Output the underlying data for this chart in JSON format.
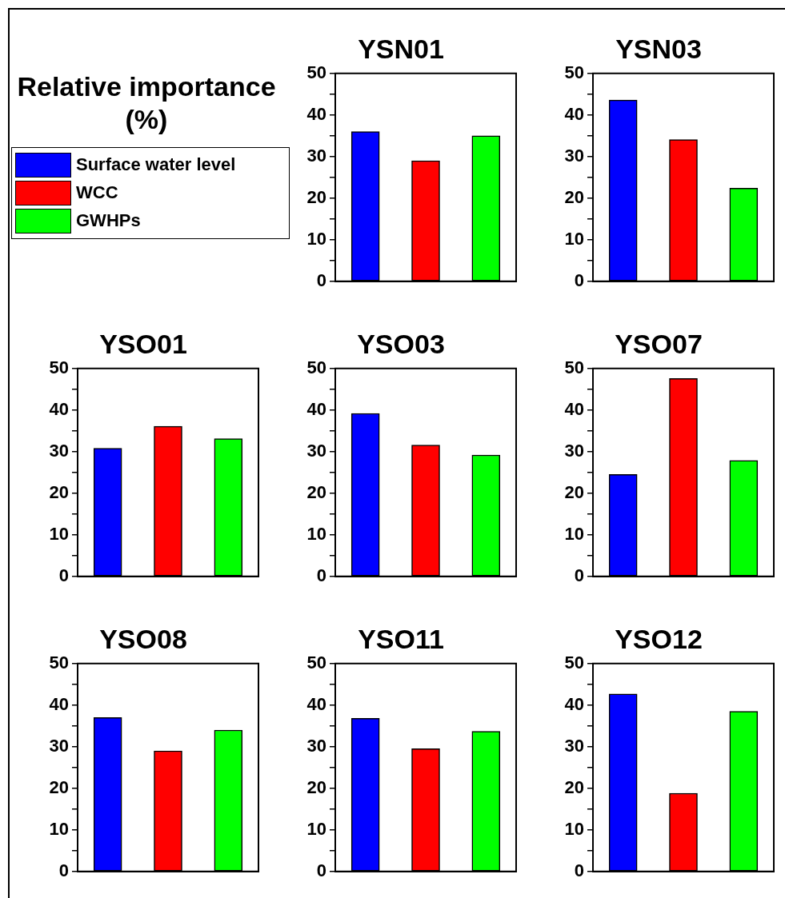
{
  "chart_data": [
    {
      "type": "other",
      "title": "Relative importance (%)",
      "legend": "bottom",
      "series": [
        {
          "name": "Surface water level",
          "color": "#0000ff"
        },
        {
          "name": "WCC",
          "color": "#ff0000"
        },
        {
          "name": "GWHPs",
          "color": "#00ff00"
        }
      ]
    },
    {
      "type": "bar",
      "title": "YSN01",
      "categories": [
        null,
        null,
        null
      ],
      "values": [
        36.0,
        29.0,
        35.0
      ],
      "colors": [
        "#0000ff",
        "#ff0000",
        "#00ff00"
      ],
      "ylim": [
        0,
        50
      ],
      "yticks": [
        0,
        {
          "value": 5,
          "label": null
        },
        10,
        {
          "value": 15,
          "label": null
        },
        20,
        {
          "value": 25,
          "label": null
        },
        30,
        {
          "value": 35,
          "label": null
        },
        40,
        {
          "value": 45,
          "label": null
        },
        50
      ],
      "tick_labels": "y"
    },
    {
      "type": "bar",
      "title": "YSN03",
      "categories": [
        null,
        null,
        null
      ],
      "values": [
        43.6,
        34.1,
        22.4
      ],
      "colors": [
        "#0000ff",
        "#ff0000",
        "#00ff00"
      ],
      "ylim": [
        0,
        50
      ],
      "yticks": [
        0,
        {
          "value": 5,
          "label": null
        },
        10,
        {
          "value": 15,
          "label": null
        },
        20,
        {
          "value": 25,
          "label": null
        },
        30,
        {
          "value": 35,
          "label": null
        },
        40,
        {
          "value": 45,
          "label": null
        },
        50
      ],
      "tick_labels": "y"
    },
    {
      "type": "bar",
      "title": "YSO01",
      "categories": [
        null,
        null,
        null
      ],
      "values": [
        30.8,
        36.1,
        33.1
      ],
      "colors": [
        "#0000ff",
        "#ff0000",
        "#00ff00"
      ],
      "ylim": [
        0,
        50
      ],
      "yticks": [
        0,
        {
          "value": 5,
          "label": null
        },
        10,
        {
          "value": 15,
          "label": null
        },
        20,
        {
          "value": 25,
          "label": null
        },
        30,
        {
          "value": 35,
          "label": null
        },
        40,
        {
          "value": 45,
          "label": null
        },
        50
      ],
      "tick_labels": "y"
    },
    {
      "type": "bar",
      "title": "YSO03",
      "categories": [
        null,
        null,
        null
      ],
      "values": [
        39.2,
        31.6,
        29.2
      ],
      "colors": [
        "#0000ff",
        "#ff0000",
        "#00ff00"
      ],
      "ylim": [
        0,
        50
      ],
      "yticks": [
        0,
        {
          "value": 5,
          "label": null
        },
        10,
        {
          "value": 15,
          "label": null
        },
        20,
        {
          "value": 25,
          "label": null
        },
        30,
        {
          "value": 35,
          "label": null
        },
        40,
        {
          "value": 45,
          "label": null
        },
        50
      ],
      "tick_labels": "y"
    },
    {
      "type": "bar",
      "title": "YSO07",
      "categories": [
        null,
        null,
        null
      ],
      "values": [
        24.5,
        47.6,
        27.9
      ],
      "colors": [
        "#0000ff",
        "#ff0000",
        "#00ff00"
      ],
      "ylim": [
        0,
        50
      ],
      "yticks": [
        0,
        {
          "value": 5,
          "label": null
        },
        10,
        {
          "value": 15,
          "label": null
        },
        20,
        {
          "value": 25,
          "label": null
        },
        30,
        {
          "value": 35,
          "label": null
        },
        40,
        {
          "value": 45,
          "label": null
        },
        50
      ],
      "tick_labels": "y"
    },
    {
      "type": "bar",
      "title": "YSO08",
      "categories": [
        null,
        null,
        null
      ],
      "values": [
        37.0,
        29.0,
        34.0
      ],
      "colors": [
        "#0000ff",
        "#ff0000",
        "#00ff00"
      ],
      "ylim": [
        0,
        50
      ],
      "yticks": [
        0,
        {
          "value": 5,
          "label": null
        },
        10,
        {
          "value": 15,
          "label": null
        },
        20,
        {
          "value": 25,
          "label": null
        },
        30,
        {
          "value": 35,
          "label": null
        },
        40,
        {
          "value": 45,
          "label": null
        },
        50
      ],
      "tick_labels": "y"
    },
    {
      "type": "bar",
      "title": "YSO11",
      "categories": [
        null,
        null,
        null
      ],
      "values": [
        36.8,
        29.5,
        33.7
      ],
      "colors": [
        "#0000ff",
        "#ff0000",
        "#00ff00"
      ],
      "ylim": [
        0,
        50
      ],
      "yticks": [
        0,
        {
          "value": 5,
          "label": null
        },
        10,
        {
          "value": 15,
          "label": null
        },
        20,
        {
          "value": 25,
          "label": null
        },
        30,
        {
          "value": 35,
          "label": null
        },
        40,
        {
          "value": 45,
          "label": null
        },
        50
      ],
      "tick_labels": "y"
    },
    {
      "type": "bar",
      "title": "YSO12",
      "categories": [
        null,
        null,
        null
      ],
      "values": [
        42.7,
        18.8,
        38.5
      ],
      "colors": [
        "#0000ff",
        "#ff0000",
        "#00ff00"
      ],
      "ylim": [
        0,
        50
      ],
      "yticks": [
        0,
        {
          "value": 5,
          "label": null
        },
        10,
        {
          "value": 15,
          "label": null
        },
        20,
        {
          "value": 25,
          "label": null
        },
        30,
        {
          "value": 35,
          "label": null
        },
        40,
        {
          "value": 45,
          "label": null
        },
        50
      ],
      "tick_labels": "y"
    }
  ]
}
